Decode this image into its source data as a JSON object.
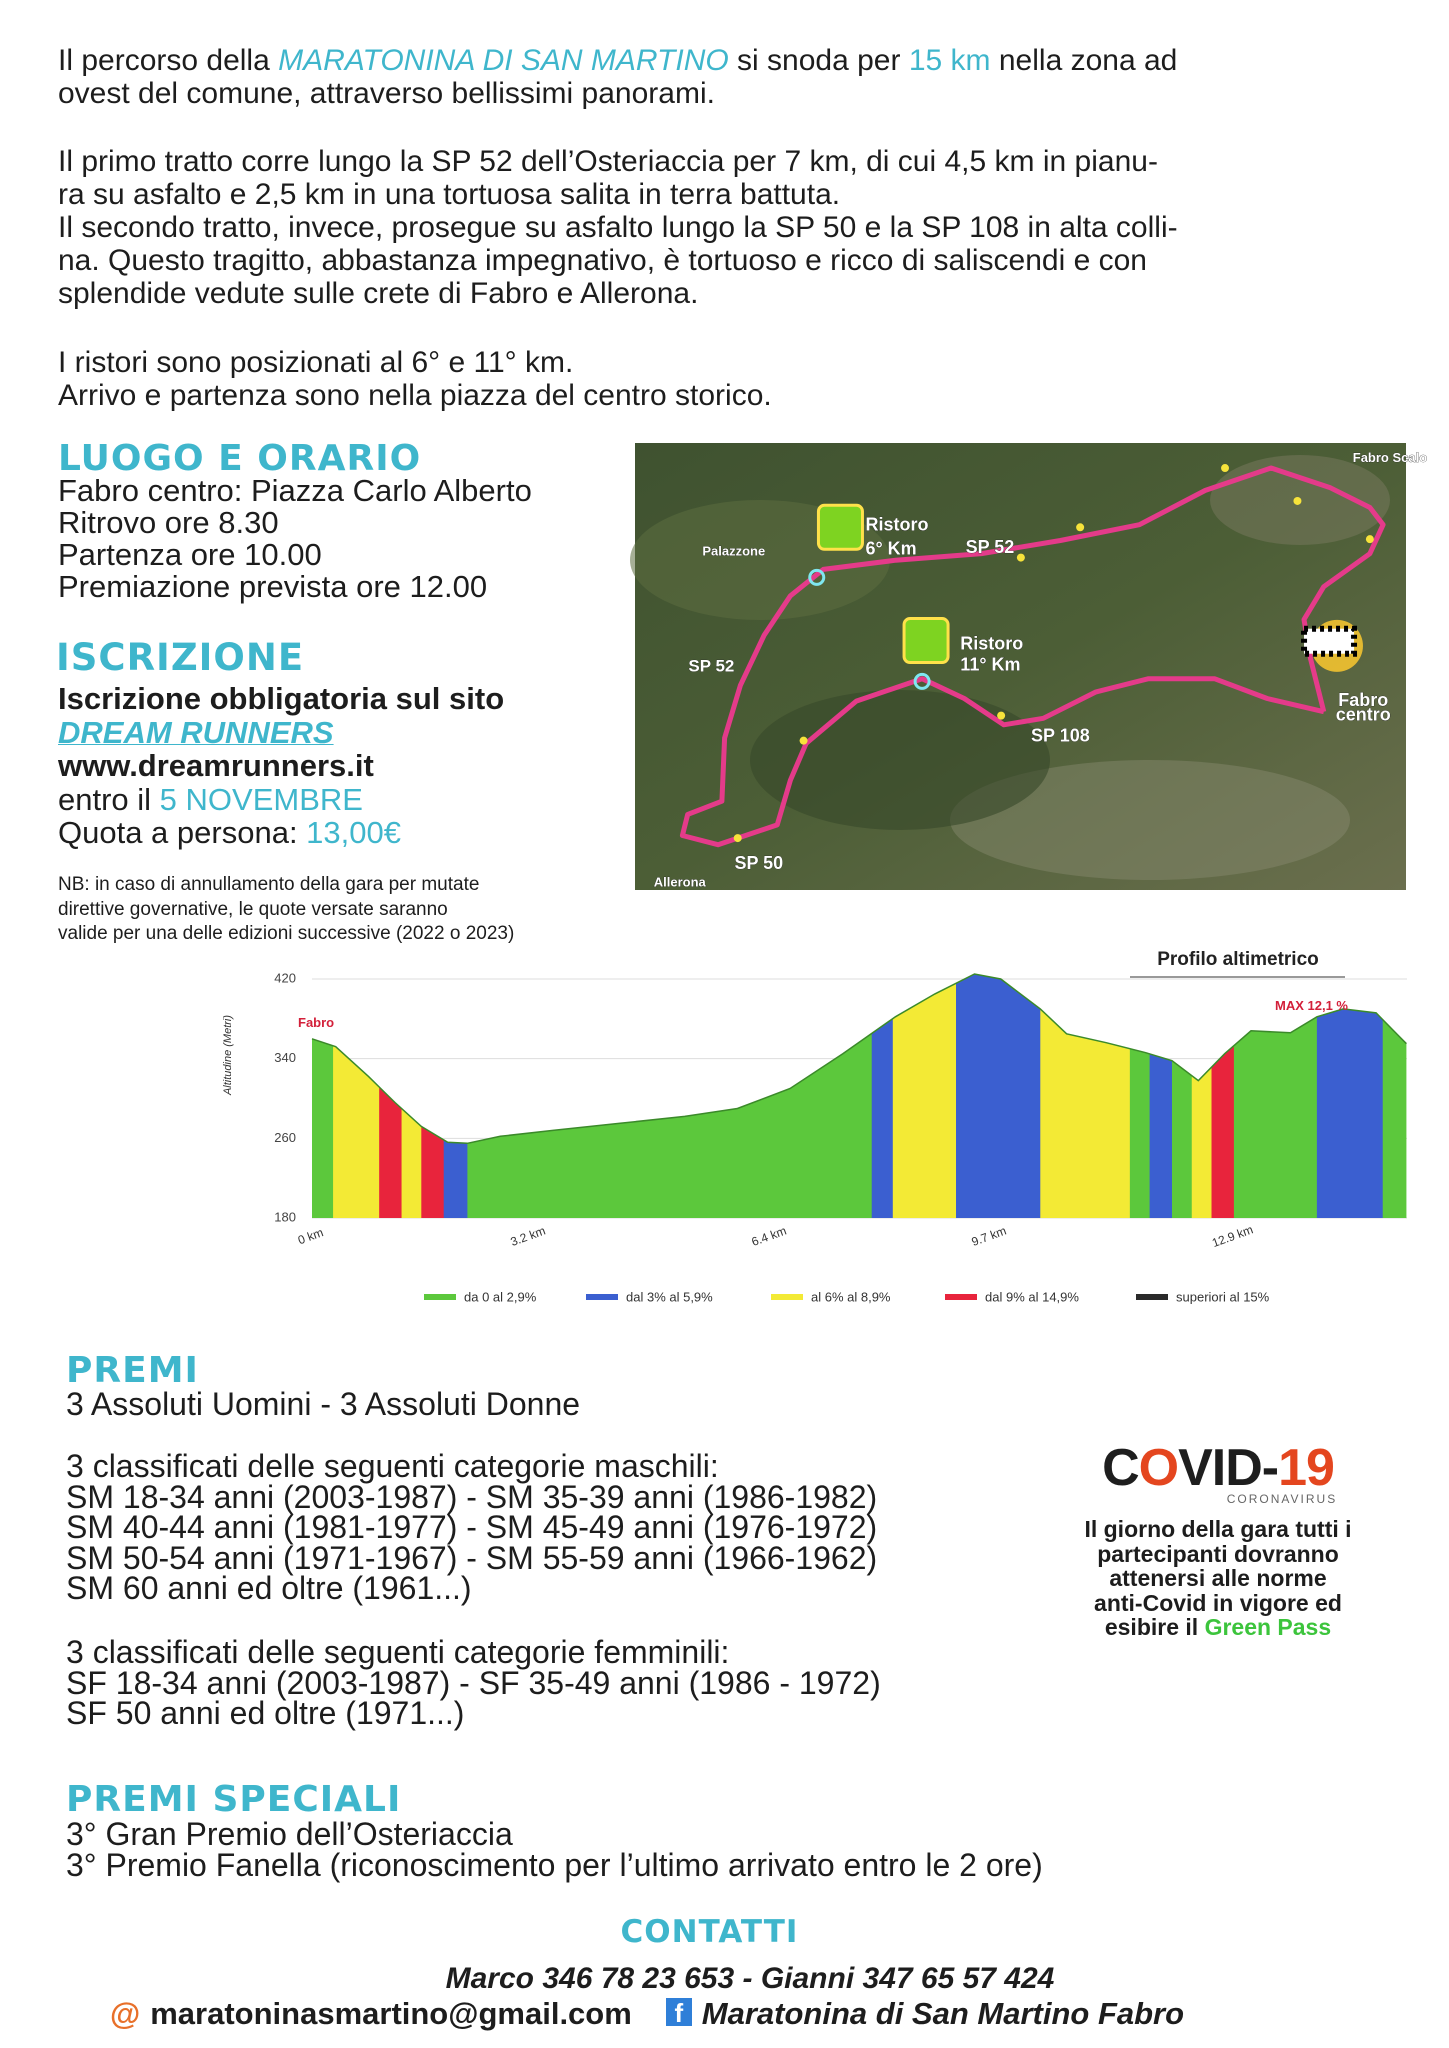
{
  "intro": {
    "paragraphs": [
      [
        [
          {
            "text": "Il percorso della "
          },
          {
            "text": "MARATONINA DI SAN MARTINO",
            "style": "accent-italic"
          },
          {
            "text": " si snoda per "
          },
          {
            "text": "15 km",
            "style": "accent"
          },
          {
            "text": " nella zona ad"
          }
        ],
        [
          {
            "text": "ovest del comune, attraverso bellissimi panorami."
          }
        ]
      ],
      [
        [
          {
            "text": "Il primo tratto corre lungo la SP 52 dell’Osteriaccia per 7 km, di cui 4,5 km in pianu-"
          }
        ],
        [
          {
            "text": "ra su asfalto e 2,5 km in una tortuosa salita in terra battuta."
          }
        ],
        [
          {
            "text": "Il secondo tratto, invece, prosegue su asfalto lungo la SP 50 e la SP 108 in alta colli-"
          }
        ],
        [
          {
            "text": "na. Questo tragitto, abbastanza impegnativo, è tortuoso e ricco di saliscendi e con"
          }
        ],
        [
          {
            "text": "splendide vedute sulle crete di Fabro e Allerona."
          }
        ]
      ],
      [
        [
          {
            "text": "I ristori sono posizionati al 6° e 11° km."
          }
        ],
        [
          {
            "text": "Arrivo e partenza sono nella piazza del centro storico."
          }
        ]
      ]
    ]
  },
  "venue": {
    "title": "LUOGO E ORARIO",
    "lines": [
      [
        {
          "text": "Fabro centro: Piazza Carlo Alberto"
        }
      ],
      [
        {
          "text": "Ritrovo ore 8.30"
        }
      ],
      [
        {
          "text": "Partenza ore 10.00"
        }
      ],
      [
        {
          "text": "Premiazione prevista ore 12.00"
        }
      ]
    ]
  },
  "registration": {
    "title": "ISCRIZIONE",
    "lines": [
      [
        {
          "text": "Iscrizione obbligatoria sul sito",
          "style": "bold"
        }
      ],
      [
        {
          "text": "DREAM RUNNERS",
          "style": "link"
        }
      ],
      [
        {
          "text": "www.dreamrunners.it",
          "style": "bold"
        }
      ],
      [
        {
          "text": "entro il "
        },
        {
          "text": "5 NOVEMBRE",
          "style": "accent"
        }
      ],
      [
        {
          "text": "Quota a persona: "
        },
        {
          "text": "13,00€",
          "style": "accent"
        }
      ]
    ],
    "note": [
      [
        {
          "text": "NB: in caso di annullamento della gara per mutate"
        }
      ],
      [
        {
          "text": "direttive governative, le quote versate saranno"
        }
      ],
      [
        {
          "text": "valide per una delle edizioni successive (2022 o 2023)"
        }
      ]
    ]
  },
  "map": {
    "labels": [
      "Fabro Scalo",
      "Ristoro",
      "6° Km",
      "SP 52",
      "Palazzone",
      "SP 52",
      "Ristoro",
      "11° Km",
      "Fabro",
      "centro",
      "SP 108",
      "SP 50",
      "Allerona"
    ]
  },
  "profile": {
    "title": "Profilo altimetrico",
    "y_label": "Altitudine (Metri)",
    "yticks": [
      "420",
      "340",
      "260",
      "180"
    ],
    "xticks": [
      "0 km",
      "3.2 km",
      "6.4 km",
      "9.7 km",
      "12.9 km"
    ],
    "start_label": "Fabro",
    "max_label": "MAX 12,1 %",
    "legend": [
      {
        "label": "da 0 al 2,9%",
        "color": "#5cc83c"
      },
      {
        "label": "dal 3% al 5,9%",
        "color": "#3b5fd0"
      },
      {
        "label": "al 6% al 8,9%",
        "color": "#f3ea35"
      },
      {
        "label": "dal 9% al 14,9%",
        "color": "#e8243c"
      },
      {
        "label": "superiori al 15%",
        "color": "#2a2a2a"
      }
    ]
  },
  "prizes": {
    "title": "PREMI",
    "groups": [
      [
        "3 Assoluti Uomini - 3 Assoluti Donne"
      ],
      [
        "3 classificati delle seguenti categorie maschili:",
        "SM 18-34 anni (2003-1987) - SM 35-39 anni (1986-1982)",
        "SM 40-44 anni (1981-1977) - SM 45-49 anni (1976-1972)",
        "SM 50-54 anni (1971-1967) - SM 55-59 anni (1966-1962)",
        "SM 60 anni ed oltre (1961...)"
      ],
      [
        "3 classificati delle seguenti categorie femminili:",
        "SF 18-34 anni (2003-1987) - SF 35-49 anni (1986 - 1972)",
        "SF 50 anni ed oltre (1971...)"
      ]
    ]
  },
  "special_prizes": {
    "title": "PREMI SPECIALI",
    "lines": [
      "3° Gran Premio dell’Osteriaccia",
      "3° Premio Fanella (riconoscimento per l’ultimo arrivato entro le 2 ore)"
    ]
  },
  "covid": {
    "logo": [
      "C",
      "O",
      "VID-",
      "19"
    ],
    "subtitle": "CORONAVIRUS",
    "lines": [
      [
        {
          "text": "Il giorno della gara tutti i"
        }
      ],
      [
        {
          "text": "partecipanti dovranno"
        }
      ],
      [
        {
          "text": "attenersi alle norme"
        }
      ],
      [
        {
          "text": "anti-Covid in vigore ed"
        }
      ],
      [
        {
          "text": "esibire il "
        },
        {
          "text": "Green Pass",
          "style": "green"
        }
      ]
    ]
  },
  "contacts": {
    "title": "CONTATTI",
    "phones": "Marco 346 78 23 653 - Gianni 347 65 57 424",
    "email_icon": "@",
    "email": "maratoninasmartino@gmail.com",
    "facebook_icon": "f",
    "facebook": "Maratonina di San Martino Fabro"
  }
}
